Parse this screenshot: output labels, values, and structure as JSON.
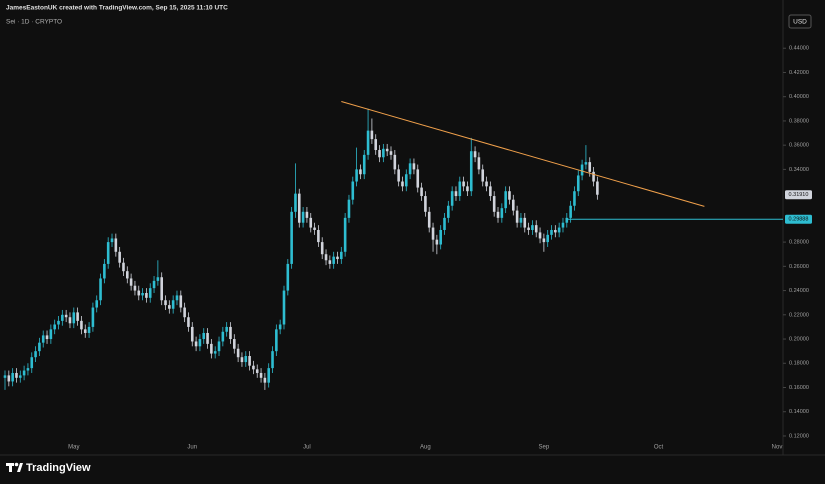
{
  "header": {
    "attribution": "JamesEastonUK created with TradingView.com, Sep 15, 2025 11:10 UTC",
    "symbol": "Sei · 1D · CRYPTO",
    "currency": "USD"
  },
  "footer": {
    "brand": "TradingView"
  },
  "chart_data": {
    "type": "candlestick",
    "categories": [
      null,
      null,
      null,
      null,
      null,
      null,
      null,
      null,
      null,
      null,
      null,
      null,
      null,
      null,
      null,
      null,
      null,
      null,
      "May",
      null,
      null,
      null,
      null,
      null,
      null,
      null,
      null,
      null,
      null,
      null,
      null,
      null,
      null,
      null,
      null,
      null,
      null,
      null,
      null,
      null,
      null,
      null,
      null,
      null,
      null,
      null,
      null,
      null,
      null,
      "Jun",
      null,
      null,
      null,
      null,
      null,
      null,
      null,
      null,
      null,
      null,
      null,
      null,
      null,
      null,
      null,
      null,
      null,
      null,
      null,
      null,
      null,
      null,
      null,
      null,
      null,
      null,
      null,
      null,
      null,
      "Jul",
      null,
      null,
      null,
      null,
      null,
      null,
      null,
      null,
      null,
      null,
      null,
      null,
      null,
      null,
      null,
      null,
      null,
      null,
      null,
      null,
      null,
      null,
      null,
      null,
      null,
      null,
      null,
      null,
      null,
      null,
      "Aug",
      null,
      null,
      null,
      null,
      null,
      null,
      null,
      null,
      null,
      null,
      null,
      null,
      null,
      null,
      null,
      null,
      null,
      null,
      null,
      null,
      null,
      null,
      null,
      null,
      null,
      null,
      null,
      null,
      null,
      null,
      "Sep",
      null,
      null,
      null,
      null,
      null,
      null,
      null,
      null,
      null,
      null,
      null,
      null,
      null,
      null,
      null,
      null,
      null,
      null,
      null,
      null,
      null,
      null,
      null,
      null,
      null,
      null,
      null,
      null,
      null,
      "Oct",
      null,
      null,
      null,
      null,
      null,
      null,
      null,
      null,
      null,
      null,
      null,
      null,
      null,
      null,
      null,
      null,
      null,
      null,
      null,
      null,
      null,
      null,
      null,
      null,
      null,
      null,
      null,
      null,
      null,
      null,
      "Nov"
    ],
    "open": [
      0.168,
      0.17,
      0.165,
      0.172,
      0.168,
      0.17,
      0.174,
      0.176,
      0.185,
      0.19,
      0.197,
      0.203,
      0.2,
      0.208,
      0.212,
      0.215,
      0.22,
      0.218,
      0.213,
      0.222,
      0.215,
      0.208,
      0.205,
      0.21,
      0.226,
      0.232,
      0.25,
      0.262,
      0.28,
      0.283,
      0.272,
      0.263,
      0.256,
      0.25,
      0.244,
      0.24,
      0.236,
      0.238,
      0.234,
      0.242,
      0.248,
      0.251,
      0.232,
      0.228,
      0.225,
      0.232,
      0.236,
      0.226,
      0.218,
      0.21,
      0.198,
      0.194,
      0.2,
      0.205,
      0.196,
      0.188,
      0.19,
      0.198,
      0.206,
      0.21,
      0.2,
      0.192,
      0.185,
      0.181,
      0.186,
      0.178,
      0.175,
      0.172,
      0.168,
      0.164,
      0.176,
      0.19,
      0.208,
      0.212,
      0.24,
      0.262,
      0.305,
      0.32,
      0.296,
      0.305,
      0.3,
      0.292,
      0.29,
      0.28,
      0.27,
      0.265,
      0.262,
      0.268,
      0.266,
      0.272,
      0.3,
      0.315,
      0.33,
      0.34,
      0.336,
      0.352,
      0.372,
      0.365,
      0.356,
      0.35,
      0.357,
      0.355,
      0.352,
      0.34,
      0.33,
      0.326,
      0.336,
      0.345,
      0.34,
      0.325,
      0.318,
      0.305,
      0.292,
      0.282,
      0.278,
      0.29,
      0.3,
      0.31,
      0.322,
      0.318,
      0.33,
      0.326,
      0.322,
      0.355,
      0.35,
      0.34,
      0.33,
      0.326,
      0.318,
      0.305,
      0.3,
      0.308,
      0.322,
      0.315,
      0.306,
      0.296,
      0.3,
      0.292,
      0.29,
      0.294,
      0.288,
      0.283,
      0.28,
      0.286,
      0.29,
      0.288,
      0.292,
      0.296,
      0.3,
      0.31,
      0.322,
      0.335,
      0.344,
      0.346,
      0.338,
      0.33,
      null,
      null,
      null,
      null,
      null,
      null,
      null,
      null,
      null,
      null,
      null,
      null,
      null,
      null,
      null,
      null,
      null,
      null,
      null,
      null,
      null,
      null,
      null,
      null,
      null,
      null,
      null,
      null,
      null,
      null,
      null,
      null,
      null,
      null,
      null,
      null,
      null,
      null,
      null,
      null,
      null,
      null,
      null,
      null,
      null,
      null,
      null
    ],
    "high": [
      0.174,
      0.174,
      0.176,
      0.176,
      0.174,
      0.178,
      0.18,
      0.189,
      0.194,
      0.201,
      0.207,
      0.207,
      0.212,
      0.216,
      0.219,
      0.224,
      0.224,
      0.222,
      0.226,
      0.226,
      0.219,
      0.212,
      0.214,
      0.23,
      0.236,
      0.254,
      0.266,
      0.284,
      0.287,
      0.287,
      0.276,
      0.267,
      0.26,
      0.254,
      0.248,
      0.244,
      0.242,
      0.242,
      0.246,
      0.252,
      0.265,
      0.255,
      0.236,
      0.232,
      0.236,
      0.24,
      0.24,
      0.23,
      0.222,
      0.214,
      0.202,
      0.204,
      0.209,
      0.209,
      0.2,
      0.194,
      0.202,
      0.21,
      0.214,
      0.214,
      0.204,
      0.196,
      0.189,
      0.19,
      0.19,
      0.182,
      0.179,
      0.176,
      0.172,
      0.18,
      0.194,
      0.212,
      0.216,
      0.244,
      0.266,
      0.309,
      0.345,
      0.324,
      0.309,
      0.309,
      0.304,
      0.296,
      0.294,
      0.284,
      0.274,
      0.269,
      0.272,
      0.272,
      0.276,
      0.304,
      0.319,
      0.334,
      0.358,
      0.344,
      0.356,
      0.39,
      0.382,
      0.369,
      0.36,
      0.361,
      0.361,
      0.359,
      0.356,
      0.344,
      0.334,
      0.34,
      0.349,
      0.349,
      0.344,
      0.329,
      0.322,
      0.309,
      0.296,
      0.286,
      0.294,
      0.304,
      0.314,
      0.326,
      0.326,
      0.334,
      0.334,
      0.33,
      0.366,
      0.359,
      0.354,
      0.344,
      0.334,
      0.33,
      0.322,
      0.309,
      0.312,
      0.326,
      0.326,
      0.319,
      0.31,
      0.304,
      0.304,
      0.296,
      0.298,
      0.298,
      0.292,
      0.287,
      0.29,
      0.294,
      0.294,
      0.296,
      0.3,
      0.304,
      0.314,
      0.326,
      0.339,
      0.348,
      0.36,
      0.35,
      0.342,
      0.334,
      null,
      null,
      null,
      null,
      null,
      null,
      null,
      null,
      null,
      null,
      null,
      null,
      null,
      null,
      null,
      null,
      null,
      null,
      null,
      null,
      null,
      null,
      null,
      null,
      null,
      null,
      null,
      null,
      null,
      null,
      null,
      null,
      null,
      null,
      null,
      null,
      null,
      null,
      null,
      null,
      null,
      null,
      null,
      null,
      null,
      null,
      null
    ],
    "low": [
      0.158,
      0.161,
      0.161,
      0.164,
      0.164,
      0.166,
      0.17,
      0.172,
      0.181,
      0.186,
      0.193,
      0.196,
      0.196,
      0.204,
      0.208,
      0.211,
      0.214,
      0.209,
      0.209,
      0.211,
      0.204,
      0.201,
      0.201,
      0.206,
      0.222,
      0.228,
      0.246,
      0.258,
      0.276,
      0.268,
      0.259,
      0.252,
      0.246,
      0.24,
      0.236,
      0.232,
      0.232,
      0.23,
      0.23,
      0.238,
      0.244,
      0.228,
      0.224,
      0.221,
      0.221,
      0.228,
      0.222,
      0.214,
      0.206,
      0.194,
      0.19,
      0.19,
      0.196,
      0.192,
      0.184,
      0.184,
      0.186,
      0.194,
      0.202,
      0.196,
      0.188,
      0.181,
      0.177,
      0.177,
      0.174,
      0.171,
      0.168,
      0.164,
      0.158,
      0.16,
      0.172,
      0.186,
      0.204,
      0.208,
      0.236,
      0.258,
      0.3,
      0.292,
      0.292,
      0.296,
      0.288,
      0.286,
      0.276,
      0.266,
      0.261,
      0.258,
      0.258,
      0.262,
      0.262,
      0.268,
      0.296,
      0.311,
      0.326,
      0.332,
      0.332,
      0.348,
      0.361,
      0.352,
      0.346,
      0.346,
      0.351,
      0.348,
      0.336,
      0.326,
      0.322,
      0.322,
      0.332,
      0.336,
      0.321,
      0.314,
      0.301,
      0.288,
      0.272,
      0.27,
      0.274,
      0.286,
      0.296,
      0.306,
      0.314,
      0.314,
      0.322,
      0.318,
      0.318,
      0.346,
      0.336,
      0.326,
      0.322,
      0.314,
      0.301,
      0.296,
      0.296,
      0.304,
      0.311,
      0.302,
      0.292,
      0.292,
      0.288,
      0.286,
      0.286,
      0.284,
      0.279,
      0.272,
      0.276,
      0.282,
      0.284,
      0.284,
      0.288,
      0.292,
      0.296,
      0.306,
      0.318,
      0.331,
      0.34,
      0.334,
      0.326,
      0.315,
      null,
      null,
      null,
      null,
      null,
      null,
      null,
      null,
      null,
      null,
      null,
      null,
      null,
      null,
      null,
      null,
      null,
      null,
      null,
      null,
      null,
      null,
      null,
      null,
      null,
      null,
      null,
      null,
      null,
      null,
      null,
      null,
      null,
      null,
      null,
      null,
      null,
      null,
      null,
      null,
      null,
      null,
      null,
      null,
      null,
      null,
      null
    ],
    "close": [
      0.17,
      0.165,
      0.172,
      0.168,
      0.17,
      0.174,
      0.176,
      0.185,
      0.19,
      0.197,
      0.203,
      0.2,
      0.208,
      0.212,
      0.215,
      0.22,
      0.218,
      0.213,
      0.222,
      0.215,
      0.208,
      0.205,
      0.21,
      0.226,
      0.232,
      0.25,
      0.262,
      0.28,
      0.283,
      0.272,
      0.263,
      0.256,
      0.25,
      0.244,
      0.24,
      0.236,
      0.238,
      0.234,
      0.242,
      0.248,
      0.251,
      0.232,
      0.228,
      0.225,
      0.232,
      0.236,
      0.226,
      0.218,
      0.21,
      0.198,
      0.194,
      0.2,
      0.205,
      0.196,
      0.188,
      0.19,
      0.198,
      0.206,
      0.21,
      0.2,
      0.192,
      0.185,
      0.181,
      0.186,
      0.178,
      0.175,
      0.172,
      0.168,
      0.164,
      0.176,
      0.19,
      0.208,
      0.212,
      0.24,
      0.262,
      0.305,
      0.32,
      0.296,
      0.305,
      0.3,
      0.292,
      0.29,
      0.28,
      0.27,
      0.265,
      0.262,
      0.268,
      0.266,
      0.272,
      0.3,
      0.315,
      0.33,
      0.34,
      0.336,
      0.352,
      0.372,
      0.365,
      0.356,
      0.35,
      0.357,
      0.355,
      0.352,
      0.34,
      0.33,
      0.326,
      0.336,
      0.345,
      0.34,
      0.325,
      0.318,
      0.305,
      0.292,
      0.282,
      0.278,
      0.29,
      0.3,
      0.31,
      0.322,
      0.318,
      0.33,
      0.326,
      0.322,
      0.355,
      0.35,
      0.34,
      0.33,
      0.326,
      0.318,
      0.305,
      0.3,
      0.308,
      0.322,
      0.315,
      0.306,
      0.296,
      0.3,
      0.292,
      0.29,
      0.294,
      0.288,
      0.283,
      0.28,
      0.286,
      0.29,
      0.288,
      0.292,
      0.296,
      0.3,
      0.31,
      0.322,
      0.335,
      0.344,
      0.346,
      0.338,
      0.33,
      0.3191,
      null,
      null,
      null,
      null,
      null,
      null,
      null,
      null,
      null,
      null,
      null,
      null,
      null,
      null,
      null,
      null,
      null,
      null,
      null,
      null,
      null,
      null,
      null,
      null,
      null,
      null,
      null,
      null,
      null,
      null,
      null,
      null,
      null,
      null,
      null,
      null,
      null,
      null,
      null,
      null,
      null,
      null,
      null,
      null,
      null,
      null,
      null
    ],
    "up_color": "#2ebdd1",
    "down_color": "#d1d4dc",
    "last_price_label": "0.31910",
    "ylim": [
      0.1076,
      0.4798
    ],
    "yticks": [
      {
        "value": 0.12,
        "label": "0.12000"
      },
      {
        "value": 0.14,
        "label": "0.14000"
      },
      {
        "value": 0.16,
        "label": "0.16000"
      },
      {
        "value": 0.18,
        "label": "0.18000"
      },
      {
        "value": 0.2,
        "label": "0.20000"
      },
      {
        "value": 0.22,
        "label": "0.22000"
      },
      {
        "value": 0.24,
        "label": "0.24000"
      },
      {
        "value": 0.26,
        "label": "0.26000"
      },
      {
        "value": 0.28,
        "label": "0.28000"
      },
      {
        "value": 0.34,
        "label": "0.34000"
      },
      {
        "value": 0.36,
        "label": "0.36000"
      },
      {
        "value": 0.38,
        "label": "0.38000"
      },
      {
        "value": 0.4,
        "label": "0.40000"
      },
      {
        "value": 0.42,
        "label": "0.42000"
      },
      {
        "value": 0.44,
        "label": "0.44000"
      }
    ],
    "trendline": {
      "x": [
        88,
        183
      ],
      "y": [
        0.396,
        0.3095
      ],
      "color": "#f0a04b"
    },
    "level": {
      "x": 147,
      "value": 0.29888,
      "label": "0.29888",
      "color": "#2ebdd1"
    }
  }
}
